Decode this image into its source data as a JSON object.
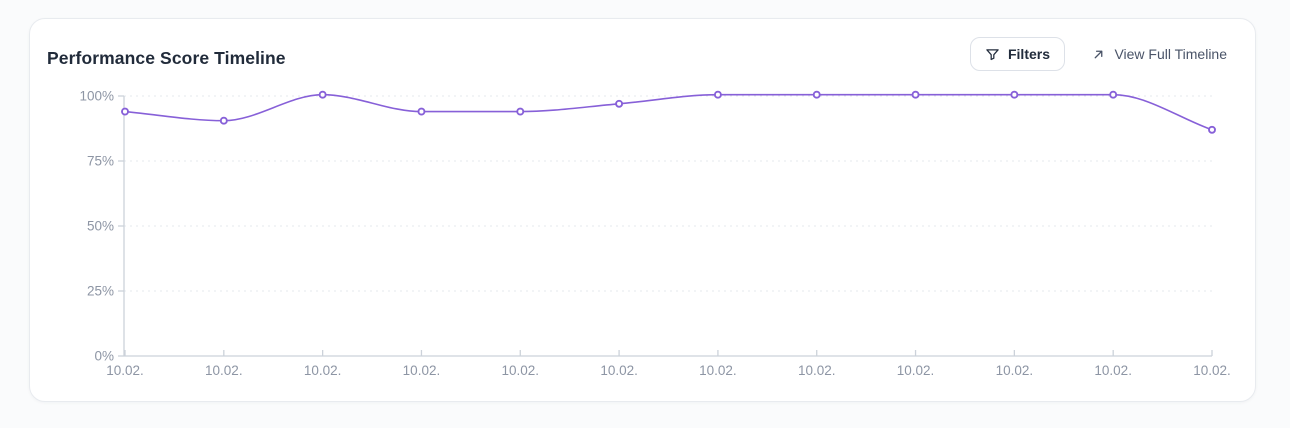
{
  "card": {
    "title": "Performance Score Timeline"
  },
  "toolbar": {
    "filters_label": "Filters",
    "filters_icon": "funnel-icon",
    "view_full_label": "View Full Timeline",
    "view_full_icon": "arrow-up-right-icon"
  },
  "colors": {
    "line": "#8760d8",
    "marker_fill": "#ffffff",
    "grid": "#e5e8ed",
    "axis": "#ccd2da",
    "tick_label": "#8d95a4",
    "title_text": "#212b3a",
    "link_text": "#4a5468",
    "card_border": "#e8ebef",
    "card_bg": "#ffffff"
  },
  "chart_data": {
    "type": "line",
    "title": "Performance Score Timeline",
    "x": [
      "10.02.",
      "10.02.",
      "10.02.",
      "10.02.",
      "10.02.",
      "10.02.",
      "10.02.",
      "10.02.",
      "10.02.",
      "10.02.",
      "10.02.",
      "10.02."
    ],
    "values": [
      94,
      90.5,
      100.5,
      94,
      94,
      97,
      100.5,
      100.5,
      100.5,
      100.5,
      100.5,
      87
    ],
    "unit": "%",
    "ylabel": "",
    "xlabel": "",
    "y_ticks": [
      0,
      25,
      50,
      75,
      100
    ],
    "y_tick_labels": [
      "0%",
      "25%",
      "50%",
      "75%",
      "100%"
    ],
    "ylim": [
      0,
      105
    ],
    "grid": "horizontal-dotted",
    "legend": "none",
    "curve": "monotone",
    "marker": "open-circle"
  }
}
